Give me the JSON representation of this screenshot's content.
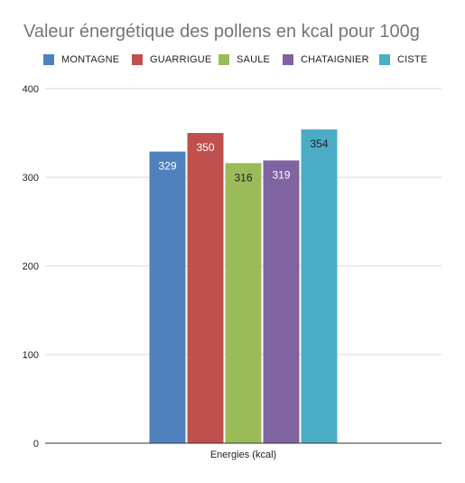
{
  "chart_data": {
    "type": "bar",
    "title": "Valeur énergétique des pollens en kcal pour 100g",
    "xlabel": "",
    "ylabel": "",
    "categories": [
      "Energies (kcal)"
    ],
    "ylim": [
      0,
      400
    ],
    "yticks": [
      0,
      100,
      200,
      300,
      400
    ],
    "grid": true,
    "legend_position": "top",
    "series": [
      {
        "name": "MONTAGNE",
        "values": [
          329
        ],
        "color": "#4f81bd"
      },
      {
        "name": "GUARRIGUE",
        "values": [
          350
        ],
        "color": "#c0504d"
      },
      {
        "name": "SAULE",
        "values": [
          316
        ],
        "color": "#9bbb59"
      },
      {
        "name": "CHATAIGNIER",
        "values": [
          319
        ],
        "color": "#8064a2"
      },
      {
        "name": "CISTE",
        "values": [
          354
        ],
        "color": "#4bacc6"
      }
    ],
    "data_label_colors": [
      "#ffffff",
      "#ffffff",
      "#222222",
      "#ffffff",
      "#222222"
    ]
  }
}
